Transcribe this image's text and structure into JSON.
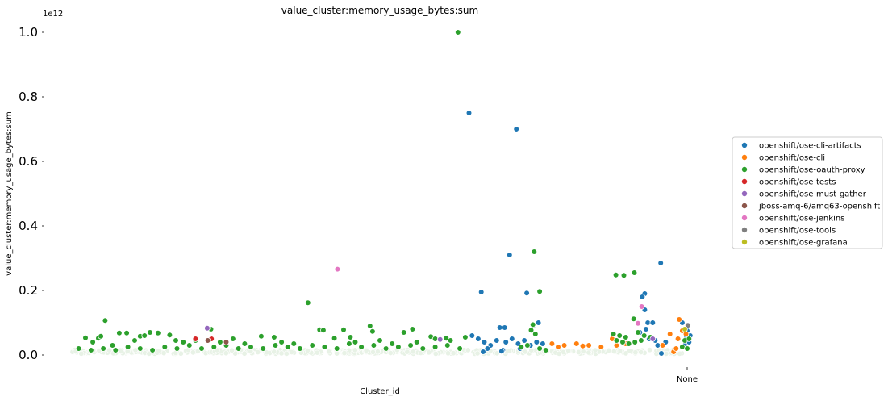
{
  "chart_data": {
    "type": "scatter",
    "title": "value_cluster:memory_usage_bytes:sum",
    "xlabel": "Cluster_id",
    "ylabel": "value_cluster:memory_usage_bytes:sum",
    "y_offset_label": "1e12",
    "y_unit_scale": 1000000000000.0,
    "ylim": [
      0,
      1.0
    ],
    "y_ticks": [
      0.0,
      0.2,
      0.4,
      0.6,
      0.8,
      1.0
    ],
    "y_tick_labels": [
      "0.0",
      "0.2",
      "0.4",
      "0.6",
      "0.8",
      "1.0"
    ],
    "x_ticks": [
      "None"
    ],
    "x_domain": [
      0,
      100
    ],
    "x_tick_positions": [
      100
    ],
    "grid": false,
    "legend_position": "right",
    "colors": {
      "openshift/ose-cli-artifacts": "#1f77b4",
      "openshift/ose-cli": "#ff7f0e",
      "openshift/ose-oauth-proxy": "#2ca02c",
      "openshift/ose-tests": "#d62728",
      "openshift/ose-must-gather": "#9467bd",
      "jboss-amq-6/amq63-openshift": "#8c564b",
      "openshift/ose-jenkins": "#e377c2",
      "openshift/ose-tools": "#7f7f7f",
      "openshift/ose-grafana": "#bcbd22"
    },
    "series": [
      {
        "name": "openshift/ose-cli-artifacts",
        "points": [
          [
            64.5,
            0.75
          ],
          [
            72.2,
            0.7
          ],
          [
            71.1,
            0.31
          ],
          [
            66.5,
            0.195
          ],
          [
            73.9,
            0.192
          ],
          [
            74.9,
            0.09
          ],
          [
            75.8,
            0.1
          ],
          [
            69.5,
            0.085
          ],
          [
            70.3,
            0.085
          ],
          [
            95.7,
            0.285
          ],
          [
            93.1,
            0.19
          ],
          [
            92.7,
            0.18
          ],
          [
            93.1,
            0.14
          ],
          [
            93.6,
            0.1
          ],
          [
            94.4,
            0.1
          ],
          [
            92.3,
            0.07
          ],
          [
            93.3,
            0.08
          ],
          [
            99.2,
            0.1
          ],
          [
            100.0,
            0.075
          ],
          [
            100.5,
            0.06
          ],
          [
            99.9,
            0.055
          ],
          [
            100.3,
            0.04
          ],
          [
            99.6,
            0.03
          ],
          [
            95.8,
            0.005
          ],
          [
            65.0,
            0.06
          ],
          [
            66.0,
            0.05
          ],
          [
            67.0,
            0.04
          ],
          [
            68.0,
            0.03
          ],
          [
            69.0,
            0.045
          ],
          [
            70.5,
            0.04
          ],
          [
            71.5,
            0.05
          ],
          [
            72.5,
            0.035
          ],
          [
            73.5,
            0.045
          ],
          [
            74.5,
            0.03
          ],
          [
            75.5,
            0.04
          ],
          [
            76.5,
            0.035
          ],
          [
            67.5,
            0.02
          ],
          [
            70.0,
            0.015
          ],
          [
            66.8,
            0.01
          ],
          [
            69.8,
            0.012
          ],
          [
            72.8,
            0.02
          ],
          [
            93.8,
            0.05
          ],
          [
            94.8,
            0.045
          ],
          [
            95.2,
            0.03
          ],
          [
            96.5,
            0.04
          ]
        ]
      },
      {
        "name": "openshift/ose-cli",
        "points": [
          [
            98.7,
            0.11
          ],
          [
            99.2,
            0.075
          ],
          [
            87.8,
            0.05
          ],
          [
            97.2,
            0.065
          ],
          [
            98.5,
            0.05
          ],
          [
            99.8,
            0.065
          ],
          [
            78.0,
            0.035
          ],
          [
            80.0,
            0.03
          ],
          [
            82.0,
            0.035
          ],
          [
            84.0,
            0.03
          ],
          [
            86.0,
            0.025
          ],
          [
            88.5,
            0.03
          ],
          [
            90.0,
            0.035
          ],
          [
            96.0,
            0.03
          ],
          [
            97.8,
            0.01
          ],
          [
            98.2,
            0.02
          ],
          [
            79.0,
            0.025
          ],
          [
            83.0,
            0.028
          ]
        ]
      },
      {
        "name": "openshift/ose-oauth-proxy",
        "points": [
          [
            62.7,
            1.0
          ],
          [
            75.1,
            0.32
          ],
          [
            76.0,
            0.197
          ],
          [
            38.3,
            0.162
          ],
          [
            5.3,
            0.107
          ],
          [
            88.4,
            0.248
          ],
          [
            89.7,
            0.247
          ],
          [
            91.4,
            0.255
          ],
          [
            91.3,
            0.112
          ],
          [
            40.2,
            0.078
          ],
          [
            40.8,
            0.077
          ],
          [
            44.1,
            0.078
          ],
          [
            48.4,
            0.09
          ],
          [
            48.8,
            0.073
          ],
          [
            55.3,
            0.08
          ],
          [
            2.1,
            0.053
          ],
          [
            3.3,
            0.04
          ],
          [
            4.2,
            0.052
          ],
          [
            4.6,
            0.058
          ],
          [
            6.5,
            0.03
          ],
          [
            7.6,
            0.068
          ],
          [
            8.8,
            0.068
          ],
          [
            10.1,
            0.045
          ],
          [
            11.0,
            0.058
          ],
          [
            11.7,
            0.06
          ],
          [
            12.6,
            0.07
          ],
          [
            13.9,
            0.068
          ],
          [
            15.8,
            0.062
          ],
          [
            16.8,
            0.045
          ],
          [
            22.5,
            0.08
          ],
          [
            26.1,
            0.05
          ],
          [
            30.7,
            0.058
          ],
          [
            32.8,
            0.055
          ],
          [
            42.6,
            0.052
          ],
          [
            45.2,
            0.055
          ],
          [
            58.3,
            0.057
          ],
          [
            60.8,
            0.052
          ],
          [
            63.9,
            0.055
          ],
          [
            74.9,
            0.094
          ],
          [
            74.6,
            0.077
          ],
          [
            75.3,
            0.065
          ],
          [
            53.9,
            0.07
          ],
          [
            56.0,
            0.04
          ],
          [
            59.0,
            0.05
          ],
          [
            61.5,
            0.045
          ],
          [
            88.0,
            0.065
          ],
          [
            89.0,
            0.06
          ],
          [
            90.0,
            0.055
          ],
          [
            92.0,
            0.07
          ],
          [
            93.0,
            0.06
          ],
          [
            94.0,
            0.055
          ],
          [
            88.5,
            0.045
          ],
          [
            89.5,
            0.04
          ],
          [
            90.5,
            0.035
          ],
          [
            91.5,
            0.04
          ],
          [
            92.5,
            0.045
          ],
          [
            99.2,
            0.025
          ],
          [
            100.0,
            0.02
          ],
          [
            99.6,
            0.045
          ],
          [
            100.3,
            0.05
          ],
          [
            1.0,
            0.02
          ],
          [
            3.0,
            0.015
          ],
          [
            5.0,
            0.02
          ],
          [
            7.0,
            0.015
          ],
          [
            9.0,
            0.025
          ],
          [
            11.0,
            0.02
          ],
          [
            13.0,
            0.015
          ],
          [
            15.0,
            0.025
          ],
          [
            17.0,
            0.02
          ],
          [
            19.0,
            0.03
          ],
          [
            21.0,
            0.02
          ],
          [
            23.0,
            0.025
          ],
          [
            25.0,
            0.03
          ],
          [
            27.0,
            0.02
          ],
          [
            29.0,
            0.025
          ],
          [
            31.0,
            0.02
          ],
          [
            33.0,
            0.03
          ],
          [
            35.0,
            0.025
          ],
          [
            37.0,
            0.02
          ],
          [
            39.0,
            0.03
          ],
          [
            41.0,
            0.025
          ],
          [
            43.0,
            0.02
          ],
          [
            45.0,
            0.035
          ],
          [
            47.0,
            0.025
          ],
          [
            49.0,
            0.03
          ],
          [
            51.0,
            0.02
          ],
          [
            53.0,
            0.025
          ],
          [
            55.0,
            0.03
          ],
          [
            57.0,
            0.02
          ],
          [
            59.0,
            0.025
          ],
          [
            61.0,
            0.03
          ],
          [
            63.0,
            0.02
          ],
          [
            18.0,
            0.04
          ],
          [
            20.0,
            0.045
          ],
          [
            24.0,
            0.04
          ],
          [
            28.0,
            0.035
          ],
          [
            34.0,
            0.04
          ],
          [
            36.0,
            0.035
          ],
          [
            46.0,
            0.04
          ],
          [
            50.0,
            0.045
          ],
          [
            52.0,
            0.035
          ],
          [
            76.0,
            0.02
          ],
          [
            77.0,
            0.015
          ],
          [
            74.0,
            0.03
          ],
          [
            73.0,
            0.025
          ]
        ]
      },
      {
        "name": "openshift/ose-tests",
        "points": [
          [
            20.0,
            0.05
          ],
          [
            22.6,
            0.05
          ]
        ]
      },
      {
        "name": "openshift/ose-must-gather",
        "points": [
          [
            21.9,
            0.083
          ],
          [
            59.8,
            0.048
          ],
          [
            94.4,
            0.05
          ]
        ]
      },
      {
        "name": "jboss-amq-6/amq63-openshift",
        "points": [
          [
            22.0,
            0.045
          ],
          [
            25.0,
            0.04
          ]
        ]
      },
      {
        "name": "openshift/ose-jenkins",
        "points": [
          [
            43.1,
            0.266
          ],
          [
            92.6,
            0.15
          ],
          [
            92.0,
            0.098
          ]
        ]
      },
      {
        "name": "openshift/ose-tools",
        "points": [
          [
            100.1,
            0.092
          ]
        ]
      },
      {
        "name": "openshift/ose-grafana",
        "points": [
          [
            99.6,
            0.08
          ]
        ]
      }
    ]
  }
}
